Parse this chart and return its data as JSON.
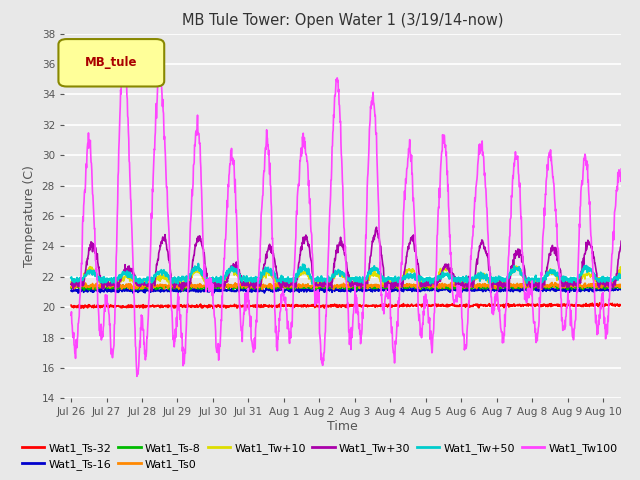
{
  "title": "MB Tule Tower: Open Water 1 (3/19/14-now)",
  "xlabel": "Time",
  "ylabel": "Temperature (C)",
  "ylim": [
    14,
    38
  ],
  "yticks": [
    14,
    16,
    18,
    20,
    22,
    24,
    26,
    28,
    30,
    32,
    34,
    36,
    38
  ],
  "legend_label": "MB_tule",
  "series": {
    "Wat1_Ts-32": {
      "color": "#ff0000",
      "lw": 1.2,
      "zorder": 2
    },
    "Wat1_Ts-16": {
      "color": "#0000cc",
      "lw": 1.2,
      "zorder": 3
    },
    "Wat1_Ts-8": {
      "color": "#00bb00",
      "lw": 1.2,
      "zorder": 4
    },
    "Wat1_Ts0": {
      "color": "#ff8800",
      "lw": 1.2,
      "zorder": 5
    },
    "Wat1_Tw+10": {
      "color": "#dddd00",
      "lw": 1.2,
      "zorder": 6
    },
    "Wat1_Tw+30": {
      "color": "#aa00aa",
      "lw": 1.2,
      "zorder": 7
    },
    "Wat1_Tw+50": {
      "color": "#00cccc",
      "lw": 1.5,
      "zorder": 8
    },
    "Wat1_Tw100": {
      "color": "#ff44ff",
      "lw": 1.2,
      "zorder": 9
    }
  },
  "bg_color": "#e8e8e8",
  "plot_bg_color": "#e8e8e8",
  "grid_color": "#ffffff",
  "legend_ncol_row1": 6,
  "legend_ncol_row2": 2,
  "x_tick_labels": [
    "Jul 26",
    "Jul 27",
    "Jul 28",
    "Jul 29",
    "Jul 30",
    "Jul 31",
    "Aug 1",
    "Aug 2",
    "Aug 3",
    "Aug 4",
    "Aug 5",
    "Aug 6",
    "Aug 7",
    "Aug 8",
    "Aug 9",
    "Aug 10"
  ]
}
